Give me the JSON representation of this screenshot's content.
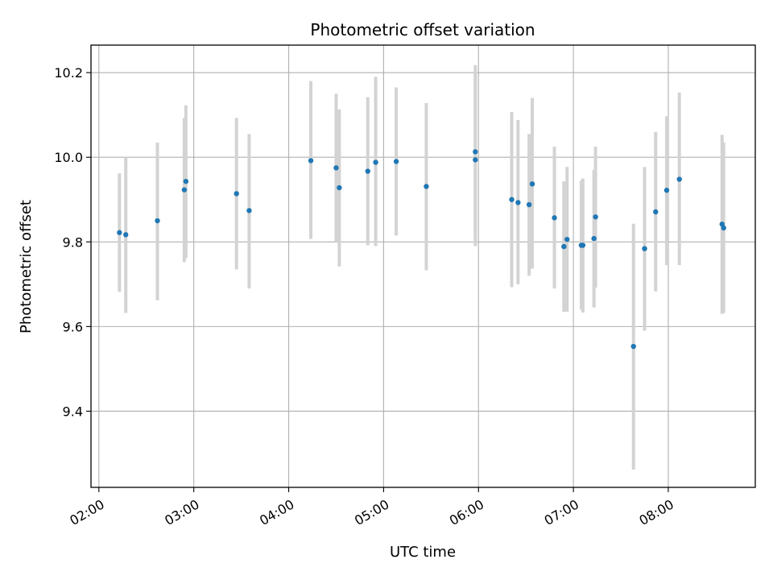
{
  "chart_data": {
    "type": "scatter",
    "title": "Photometric offset variation",
    "xlabel": "UTC time",
    "ylabel": "Photometric offset",
    "x_tick_labels": [
      "02:00",
      "03:00",
      "04:00",
      "05:00",
      "06:00",
      "07:00",
      "08:00"
    ],
    "y_tick_labels": [
      "9.4",
      "9.6",
      "9.8",
      "10.0",
      "10.2"
    ],
    "y_ticks": [
      9.4,
      9.6,
      9.8,
      10.0,
      10.2
    ],
    "xlim": [
      "01:55",
      "08:55"
    ],
    "ylim": [
      9.22,
      10.265
    ],
    "grid": true,
    "colors": {
      "point": "#1f77b4",
      "errorbar": "#d3d3d3",
      "grid": "#b0b0b0"
    },
    "points": [
      {
        "x": "02:13",
        "y": 9.822,
        "yerr": [
          9.682,
          9.962
        ]
      },
      {
        "x": "02:17",
        "y": 9.817,
        "yerr": [
          9.632,
          10.0
        ]
      },
      {
        "x": "02:37",
        "y": 9.85,
        "yerr": [
          9.662,
          10.035
        ]
      },
      {
        "x": "02:54",
        "y": 9.923,
        "yerr": [
          9.752,
          10.092
        ]
      },
      {
        "x": "02:55",
        "y": 9.943,
        "yerr": [
          9.762,
          10.123
        ]
      },
      {
        "x": "03:27",
        "y": 9.914,
        "yerr": [
          9.735,
          10.093
        ]
      },
      {
        "x": "03:35",
        "y": 9.874,
        "yerr": [
          9.69,
          10.055
        ]
      },
      {
        "x": "04:14",
        "y": 9.992,
        "yerr": [
          9.807,
          10.18
        ]
      },
      {
        "x": "04:30",
        "y": 9.975,
        "yerr": [
          9.8,
          10.15
        ]
      },
      {
        "x": "04:32",
        "y": 9.928,
        "yerr": [
          9.742,
          10.113
        ]
      },
      {
        "x": "04:50",
        "y": 9.967,
        "yerr": [
          9.792,
          10.142
        ]
      },
      {
        "x": "04:55",
        "y": 9.988,
        "yerr": [
          9.79,
          10.19
        ]
      },
      {
        "x": "05:08",
        "y": 9.99,
        "yerr": [
          9.815,
          10.165
        ]
      },
      {
        "x": "05:27",
        "y": 9.931,
        "yerr": [
          9.733,
          10.128
        ]
      },
      {
        "x": "05:58",
        "y": 10.013,
        "yerr": [
          9.81,
          10.218
        ]
      },
      {
        "x": "05:58",
        "y": 9.994,
        "yerr": [
          9.79,
          10.2
        ]
      },
      {
        "x": "06:21",
        "y": 9.9,
        "yerr": [
          9.693,
          10.107
        ]
      },
      {
        "x": "06:25",
        "y": 9.893,
        "yerr": [
          9.7,
          10.088
        ]
      },
      {
        "x": "06:32",
        "y": 9.888,
        "yerr": [
          9.72,
          10.055
        ]
      },
      {
        "x": "06:34",
        "y": 9.937,
        "yerr": [
          9.737,
          10.14
        ]
      },
      {
        "x": "06:48",
        "y": 9.857,
        "yerr": [
          9.69,
          10.025
        ]
      },
      {
        "x": "06:54",
        "y": 9.789,
        "yerr": [
          9.635,
          9.943
        ]
      },
      {
        "x": "06:56",
        "y": 9.806,
        "yerr": [
          9.635,
          9.977
        ]
      },
      {
        "x": "07:05",
        "y": 9.792,
        "yerr": [
          9.64,
          9.945
        ]
      },
      {
        "x": "07:06",
        "y": 9.792,
        "yerr": [
          9.633,
          9.95
        ]
      },
      {
        "x": "07:13",
        "y": 9.808,
        "yerr": [
          9.645,
          9.97
        ]
      },
      {
        "x": "07:14",
        "y": 9.859,
        "yerr": [
          9.692,
          10.025
        ]
      },
      {
        "x": "07:38",
        "y": 9.553,
        "yerr": [
          9.262,
          9.843
        ]
      },
      {
        "x": "07:45",
        "y": 9.784,
        "yerr": [
          9.59,
          9.977
        ]
      },
      {
        "x": "07:52",
        "y": 9.871,
        "yerr": [
          9.683,
          10.06
        ]
      },
      {
        "x": "07:59",
        "y": 9.922,
        "yerr": [
          9.745,
          10.097
        ]
      },
      {
        "x": "08:07",
        "y": 9.948,
        "yerr": [
          9.745,
          10.153
        ]
      },
      {
        "x": "08:34",
        "y": 9.842,
        "yerr": [
          9.63,
          10.053
        ]
      },
      {
        "x": "08:35",
        "y": 9.833,
        "yerr": [
          9.632,
          10.035
        ]
      }
    ]
  }
}
